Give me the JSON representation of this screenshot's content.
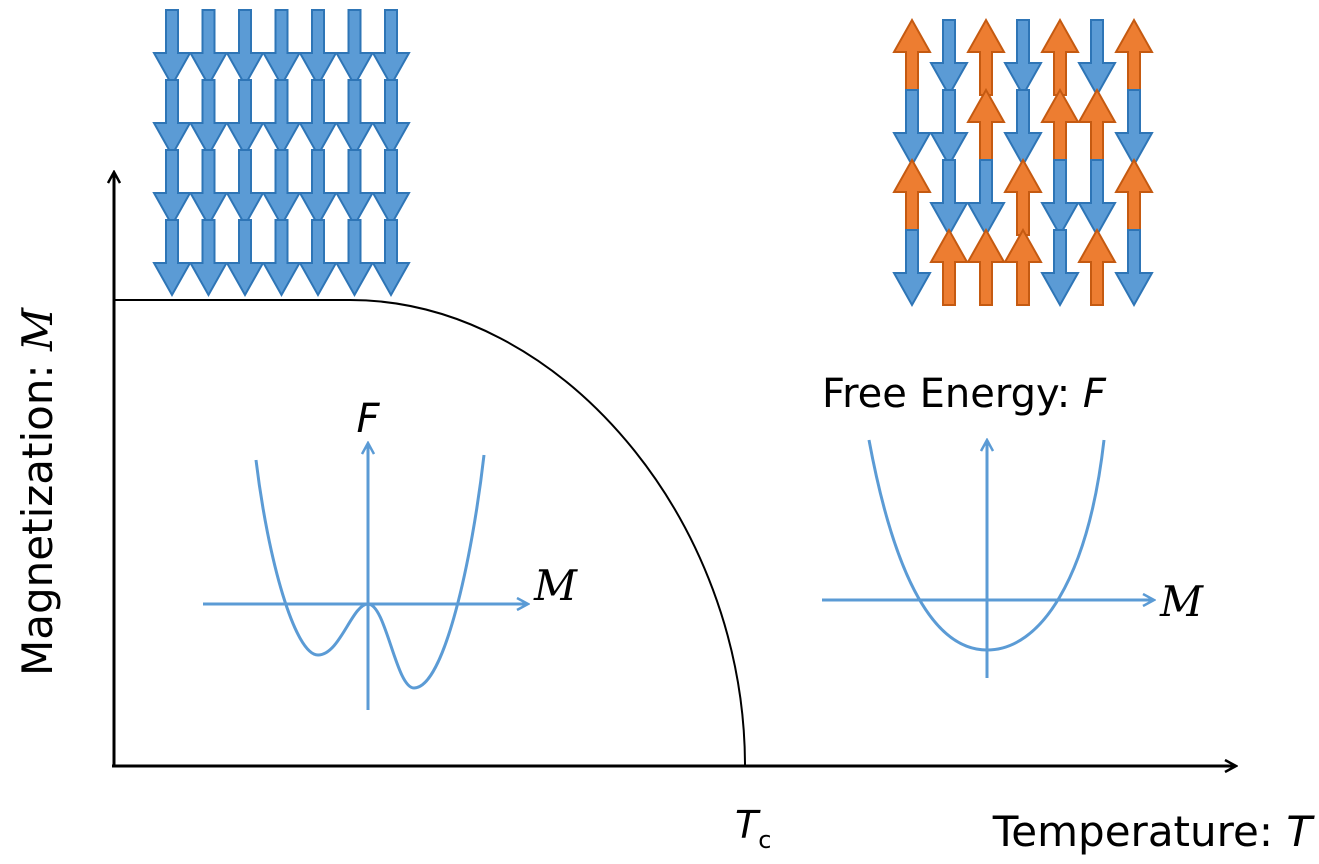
{
  "y_axis": {
    "label": "Magnetization: ",
    "symbol": "M"
  },
  "x_axis": {
    "label": "Temperature: ",
    "symbol": "T",
    "tick_main": "T",
    "tick_sub": "c"
  },
  "free_energy_title": {
    "label": "Free Energy: ",
    "symbol": "F"
  },
  "ordered_phase": {
    "f_axis_label": "F",
    "m_axis_label": "M",
    "spins": [
      [
        "down",
        "down",
        "down",
        "down",
        "down",
        "down",
        "down"
      ],
      [
        "down",
        "down",
        "down",
        "down",
        "down",
        "down",
        "down"
      ],
      [
        "down",
        "down",
        "down",
        "down",
        "down",
        "down",
        "down"
      ],
      [
        "down",
        "down",
        "down",
        "down",
        "down",
        "down",
        "down"
      ]
    ]
  },
  "disordered_phase": {
    "m_axis_label": "M",
    "spins": [
      [
        "up",
        "down",
        "up",
        "down",
        "up",
        "down",
        "up"
      ],
      [
        "down",
        "down",
        "up",
        "down",
        "up",
        "up",
        "down"
      ],
      [
        "up",
        "down",
        "down",
        "up",
        "down",
        "down",
        "up"
      ],
      [
        "down",
        "up",
        "up",
        "up",
        "down",
        "up",
        "down"
      ]
    ]
  },
  "colors": {
    "spin_up": "#ED7D31",
    "spin_up_outline": "#C55A11",
    "spin_down": "#5B9BD5",
    "spin_down_outline": "#2E75B6",
    "curve": "#5B9BD5",
    "axes": "#000000"
  }
}
